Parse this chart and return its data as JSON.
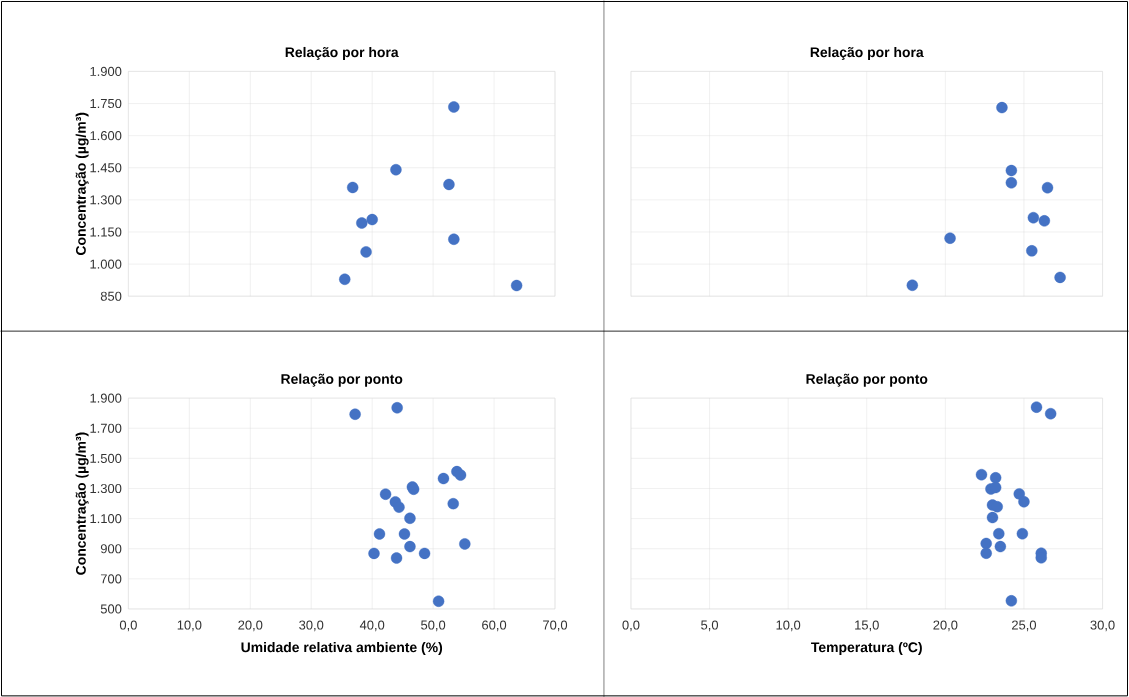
{
  "chart_data": [
    {
      "type": "scatter",
      "title": "Relação por hora",
      "ylabel": "Concentração (µg/m³)",
      "color": "#4472c4",
      "marker": "circle",
      "grid": true,
      "tick_labels": "y",
      "x": [
        53.4,
        43.9,
        36.8,
        52.6,
        38.3,
        40.0,
        53.4,
        39.0,
        35.5,
        63.7
      ],
      "values": [
        1734,
        1441,
        1358,
        1372,
        1192,
        1208,
        1116,
        1057,
        929,
        900
      ],
      "xlim": [
        0,
        70
      ],
      "xticks": [
        {
          "value": 0,
          "label": null
        },
        {
          "value": 10,
          "label": null
        },
        {
          "value": 20,
          "label": null
        },
        {
          "value": 30,
          "label": null
        },
        {
          "value": 40,
          "label": null
        },
        {
          "value": 50,
          "label": null
        },
        {
          "value": 60,
          "label": null
        },
        {
          "value": 70,
          "label": null
        }
      ],
      "ylim": [
        850,
        1900
      ],
      "yticks": [
        850,
        {
          "value": 1000,
          "label": "1.000"
        },
        {
          "value": 1150,
          "label": "1.150"
        },
        {
          "value": 1300,
          "label": "1.300"
        },
        {
          "value": 1450,
          "label": "1.450"
        },
        {
          "value": 1600,
          "label": "1.600"
        },
        {
          "value": 1750,
          "label": "1.750"
        },
        {
          "value": 1900,
          "label": "1.900"
        }
      ]
    },
    {
      "type": "scatter",
      "title": "Relação por hora",
      "color": "#4472c4",
      "marker": "circle",
      "grid": true,
      "tick_labels": false,
      "x": [
        23.6,
        24.2,
        24.2,
        26.5,
        25.6,
        26.3,
        20.3,
        25.5,
        27.3,
        17.9
      ],
      "values": [
        1731,
        1437,
        1380,
        1357,
        1217,
        1202,
        1121,
        1062,
        938,
        901
      ],
      "xlim": [
        0,
        30
      ],
      "xticks": [
        {
          "value": 0,
          "label": null
        },
        {
          "value": 5,
          "label": null
        },
        {
          "value": 10,
          "label": null
        },
        {
          "value": 15,
          "label": null
        },
        {
          "value": 20,
          "label": null
        },
        {
          "value": 25,
          "label": null
        },
        {
          "value": 30,
          "label": null
        }
      ],
      "ylim": [
        850,
        1900
      ],
      "yticks": [
        {
          "value": 850,
          "label": null
        },
        {
          "value": 1000,
          "label": null
        },
        {
          "value": 1150,
          "label": null
        },
        {
          "value": 1300,
          "label": null
        },
        {
          "value": 1450,
          "label": null
        },
        {
          "value": 1600,
          "label": null
        },
        {
          "value": 1750,
          "label": null
        },
        {
          "value": 1900,
          "label": null
        }
      ]
    },
    {
      "type": "scatter",
      "title": "Relação por ponto",
      "xlabel": "Umidade relativa ambiente (%)",
      "ylabel": "Concentração (µg/m³)",
      "color": "#4472c4",
      "marker": "circle",
      "grid": true,
      "x": [
        37.2,
        44.1,
        53.9,
        54.5,
        51.7,
        46.6,
        46.8,
        42.2,
        43.8,
        44.4,
        53.3,
        46.2,
        41.2,
        45.3,
        55.2,
        46.2,
        40.3,
        48.6,
        44.0,
        50.9
      ],
      "values": [
        1793,
        1836,
        1412,
        1389,
        1366,
        1310,
        1295,
        1262,
        1211,
        1176,
        1199,
        1102,
        998,
        998,
        932,
        914,
        869,
        869,
        838,
        551
      ],
      "xlim": [
        0,
        70
      ],
      "xticks": [
        {
          "value": 0,
          "label": "0,0"
        },
        {
          "value": 10,
          "label": "10,0"
        },
        {
          "value": 20,
          "label": "20,0"
        },
        {
          "value": 30,
          "label": "30,0"
        },
        {
          "value": 40,
          "label": "40,0"
        },
        {
          "value": 50,
          "label": "50,0"
        },
        {
          "value": 60,
          "label": "60,0"
        },
        {
          "value": 70,
          "label": "70,0"
        }
      ],
      "ylim": [
        500,
        1900
      ],
      "yticks": [
        500,
        700,
        900,
        {
          "value": 1100,
          "label": "1.100"
        },
        {
          "value": 1300,
          "label": "1.300"
        },
        {
          "value": 1500,
          "label": "1.500"
        },
        {
          "value": 1700,
          "label": "1.700"
        },
        {
          "value": 1900,
          "label": "1.900"
        }
      ]
    },
    {
      "type": "scatter",
      "title": "Relação por ponto",
      "xlabel": "Temperatura (ºC)",
      "color": "#4472c4",
      "marker": "circle",
      "grid": true,
      "tick_labels": "x",
      "x": [
        25.8,
        26.7,
        22.3,
        23.2,
        22.9,
        23.2,
        24.7,
        25.0,
        23.0,
        23.3,
        23.0,
        23.4,
        24.9,
        22.6,
        23.5,
        22.6,
        26.1,
        26.1,
        24.2
      ],
      "values": [
        1840,
        1797,
        1392,
        1371,
        1297,
        1306,
        1264,
        1212,
        1190,
        1179,
        1107,
        1000,
        1000,
        935,
        914,
        870,
        870,
        840,
        554
      ],
      "xlim": [
        0,
        30
      ],
      "xticks": [
        {
          "value": 0,
          "label": "0,0"
        },
        {
          "value": 5,
          "label": "5,0"
        },
        {
          "value": 10,
          "label": "10,0"
        },
        {
          "value": 15,
          "label": "15,0"
        },
        {
          "value": 20,
          "label": "20,0"
        },
        {
          "value": 25,
          "label": "25,0"
        },
        {
          "value": 30,
          "label": "30,0"
        }
      ],
      "ylim": [
        500,
        1900
      ],
      "yticks": [
        {
          "value": 500,
          "label": null
        },
        {
          "value": 700,
          "label": null
        },
        {
          "value": 900,
          "label": null
        },
        {
          "value": 1100,
          "label": null
        },
        {
          "value": 1300,
          "label": null
        },
        {
          "value": 1500,
          "label": null
        },
        {
          "value": 1700,
          "label": null
        },
        {
          "value": 1900,
          "label": null
        }
      ]
    }
  ]
}
